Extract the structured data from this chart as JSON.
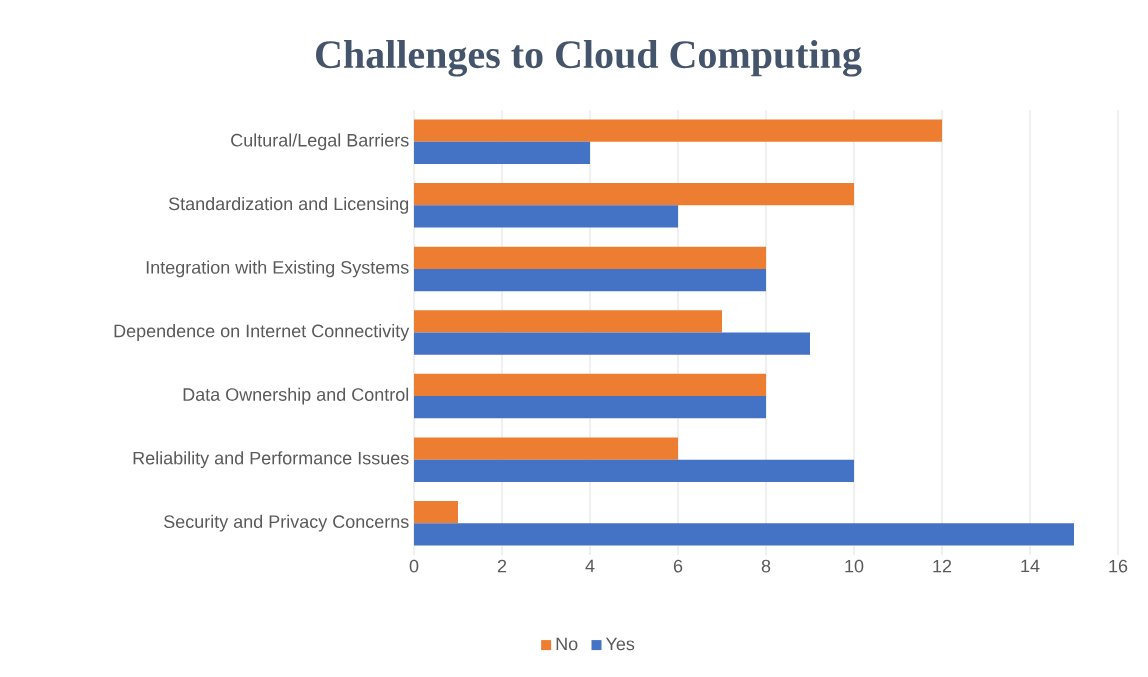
{
  "chart_data": {
    "type": "bar",
    "orientation": "horizontal",
    "title": "Challenges to Cloud Computing",
    "categories": [
      "Cultural/Legal Barriers",
      "Standardization and Licensing",
      "Integration with Existing Systems",
      "Dependence on Internet Connectivity",
      "Data Ownership and Control",
      "Reliability and Performance Issues",
      "Security and Privacy Concerns"
    ],
    "series": [
      {
        "name": "No",
        "color": "#ed7d31",
        "values": [
          12,
          10,
          8,
          7,
          8,
          6,
          1
        ]
      },
      {
        "name": "Yes",
        "color": "#4472c4",
        "values": [
          4,
          6,
          8,
          9,
          8,
          10,
          15
        ]
      }
    ],
    "xlim": [
      0,
      16
    ],
    "xticks": [
      0,
      2,
      4,
      6,
      8,
      10,
      12,
      14,
      16
    ],
    "grid": "x",
    "legend": "bottom"
  }
}
